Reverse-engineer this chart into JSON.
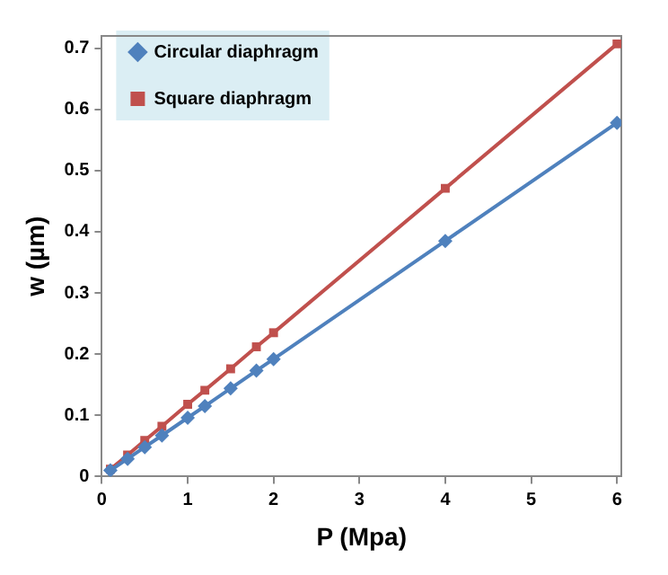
{
  "chart_data": {
    "type": "line",
    "xlabel": "P (Mpa)",
    "ylabel": "w (µm)",
    "x": [
      0.1,
      0.3,
      0.5,
      0.7,
      1.0,
      1.2,
      1.5,
      1.8,
      2.0,
      4,
      6
    ],
    "series": [
      {
        "name": "Circular diaphragm",
        "color": "#4f81bd",
        "marker": "diamond",
        "values": [
          0.01,
          0.029,
          0.048,
          0.067,
          0.096,
          0.115,
          0.144,
          0.173,
          0.192,
          0.385,
          0.578
        ]
      },
      {
        "name": "Square diaphragm",
        "color": "#c0504d",
        "marker": "square",
        "values": [
          0.012,
          0.035,
          0.059,
          0.082,
          0.118,
          0.141,
          0.176,
          0.212,
          0.235,
          0.471,
          0.707
        ]
      }
    ],
    "xlim": [
      0,
      6.05
    ],
    "xticks": [
      0,
      1,
      2,
      3,
      4,
      5,
      6
    ],
    "ylim": [
      0,
      0.72
    ],
    "yticks": [
      0,
      0.1,
      0.2,
      0.3,
      0.4,
      0.5,
      0.6,
      0.7
    ],
    "grid": false,
    "legend": "top left",
    "line_style": "solid"
  }
}
